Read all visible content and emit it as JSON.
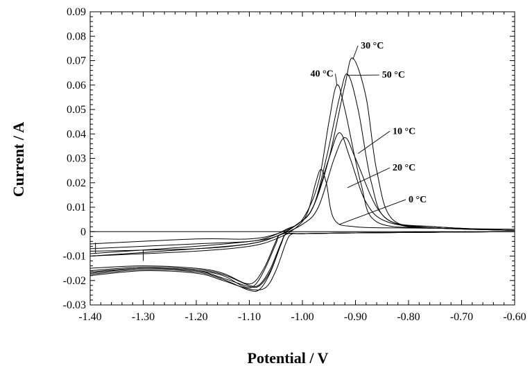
{
  "chart_data": {
    "type": "line",
    "xlabel": "Potential / V",
    "ylabel": "Current / A",
    "xlim": [
      -1.4,
      -0.6
    ],
    "ylim": [
      -0.03,
      0.09
    ],
    "x_ticks": [
      "-1.40",
      "-1.30",
      "-1.20",
      "-1.10",
      "-1.00",
      "-0.90",
      "-0.80",
      "-0.70",
      "-0.60"
    ],
    "y_ticks": [
      "-0.03",
      "-0.02",
      "-0.01",
      "0",
      "0.01",
      "0.02",
      "0.03",
      "0.04",
      "0.05",
      "0.06",
      "0.07",
      "0.08",
      "0.09"
    ],
    "grid": false,
    "series": [
      {
        "name": "0 °C",
        "forward": [
          [
            -1.4,
            -0.017
          ],
          [
            -1.3,
            -0.015
          ],
          [
            -1.2,
            -0.016
          ],
          [
            -1.15,
            -0.019
          ],
          [
            -1.1,
            -0.0225
          ],
          [
            -1.08,
            -0.022
          ],
          [
            -1.06,
            -0.016
          ],
          [
            -1.04,
            -0.005
          ],
          [
            -1.03,
            -0.001
          ],
          [
            -1.0,
            -0.0008
          ],
          [
            -0.9,
            -0.0005
          ],
          [
            -0.8,
            -0.0003
          ],
          [
            -0.6,
            0.0
          ]
        ],
        "reverse": [
          [
            -0.6,
            0.001
          ],
          [
            -0.8,
            0.0015
          ],
          [
            -0.9,
            0.002
          ],
          [
            -0.94,
            0.005
          ],
          [
            -0.955,
            0.02
          ],
          [
            -0.965,
            0.0255
          ],
          [
            -0.975,
            0.02
          ],
          [
            -0.99,
            0.008
          ],
          [
            -1.01,
            0.002
          ],
          [
            -1.05,
            -0.003
          ],
          [
            -1.1,
            -0.006
          ],
          [
            -1.2,
            -0.008
          ],
          [
            -1.4,
            -0.01
          ]
        ]
      },
      {
        "name": "10 °C",
        "forward": [
          [
            -1.4,
            -0.018
          ],
          [
            -1.3,
            -0.016
          ],
          [
            -1.2,
            -0.017
          ],
          [
            -1.15,
            -0.02
          ],
          [
            -1.1,
            -0.0235
          ],
          [
            -1.07,
            -0.023
          ],
          [
            -1.05,
            -0.016
          ],
          [
            -1.03,
            -0.004
          ],
          [
            -1.02,
            -0.001
          ],
          [
            -1.0,
            -0.0008
          ],
          [
            -0.9,
            -0.0005
          ],
          [
            -0.6,
            0.0
          ]
        ],
        "reverse": [
          [
            -0.6,
            0.0005
          ],
          [
            -0.75,
            0.0015
          ],
          [
            -0.84,
            0.004
          ],
          [
            -0.88,
            0.012
          ],
          [
            -0.91,
            0.03
          ],
          [
            -0.93,
            0.0405
          ],
          [
            -0.95,
            0.03
          ],
          [
            -0.98,
            0.01
          ],
          [
            -1.01,
            0.003
          ],
          [
            -1.05,
            -0.002
          ],
          [
            -1.1,
            -0.004
          ],
          [
            -1.2,
            -0.006
          ],
          [
            -1.4,
            -0.009
          ]
        ]
      },
      {
        "name": "20 °C",
        "forward": [
          [
            -1.4,
            -0.0175
          ],
          [
            -1.3,
            -0.0155
          ],
          [
            -1.2,
            -0.0165
          ],
          [
            -1.15,
            -0.0195
          ],
          [
            -1.1,
            -0.024
          ],
          [
            -1.08,
            -0.0235
          ],
          [
            -1.06,
            -0.0165
          ],
          [
            -1.04,
            -0.005
          ],
          [
            -1.03,
            -0.001
          ],
          [
            -1.0,
            -0.0008
          ],
          [
            -0.9,
            -0.0005
          ],
          [
            -0.6,
            0.0
          ]
        ],
        "reverse": [
          [
            -0.6,
            0.0005
          ],
          [
            -0.75,
            0.0015
          ],
          [
            -0.82,
            0.003
          ],
          [
            -0.86,
            0.01
          ],
          [
            -0.9,
            0.03
          ],
          [
            -0.92,
            0.0385
          ],
          [
            -0.94,
            0.03
          ],
          [
            -0.97,
            0.01
          ],
          [
            -1.0,
            0.003
          ],
          [
            -1.05,
            -0.002
          ],
          [
            -1.1,
            -0.005
          ],
          [
            -1.2,
            -0.007
          ],
          [
            -1.4,
            -0.008
          ]
        ]
      },
      {
        "name": "30 °C",
        "forward": [
          [
            -1.4,
            -0.0165
          ],
          [
            -1.3,
            -0.015
          ],
          [
            -1.2,
            -0.016
          ],
          [
            -1.15,
            -0.018
          ],
          [
            -1.11,
            -0.0225
          ],
          [
            -1.09,
            -0.022
          ],
          [
            -1.07,
            -0.015
          ],
          [
            -1.05,
            -0.005
          ],
          [
            -1.04,
            -0.001
          ],
          [
            -1.0,
            -0.0008
          ],
          [
            -0.9,
            -0.0005
          ],
          [
            -0.6,
            0.0
          ]
        ],
        "reverse": [
          [
            -0.6,
            0.0005
          ],
          [
            -0.75,
            0.002
          ],
          [
            -0.83,
            0.005
          ],
          [
            -0.86,
            0.025
          ],
          [
            -0.88,
            0.055
          ],
          [
            -0.905,
            0.071
          ],
          [
            -0.92,
            0.06
          ],
          [
            -0.95,
            0.03
          ],
          [
            -0.98,
            0.01
          ],
          [
            -1.01,
            0.003
          ],
          [
            -1.05,
            -0.002
          ],
          [
            -1.1,
            -0.005
          ],
          [
            -1.2,
            -0.007
          ],
          [
            -1.4,
            -0.01
          ]
        ]
      },
      {
        "name": "40 °C",
        "forward": [
          [
            -1.4,
            -0.016
          ],
          [
            -1.3,
            -0.0145
          ],
          [
            -1.2,
            -0.0155
          ],
          [
            -1.15,
            -0.0175
          ],
          [
            -1.1,
            -0.022
          ],
          [
            -1.08,
            -0.0215
          ],
          [
            -1.06,
            -0.015
          ],
          [
            -1.04,
            -0.0045
          ],
          [
            -1.03,
            -0.001
          ],
          [
            -1.0,
            -0.0008
          ],
          [
            -0.9,
            -0.0005
          ],
          [
            -0.6,
            0.0
          ]
        ],
        "reverse": [
          [
            -0.6,
            0.0005
          ],
          [
            -0.75,
            0.0015
          ],
          [
            -0.86,
            0.004
          ],
          [
            -0.89,
            0.02
          ],
          [
            -0.92,
            0.05
          ],
          [
            -0.935,
            0.06
          ],
          [
            -0.95,
            0.045
          ],
          [
            -0.97,
            0.02
          ],
          [
            -1.0,
            0.005
          ],
          [
            -1.03,
            0.001
          ],
          [
            -1.06,
            -0.002
          ],
          [
            -1.1,
            -0.004
          ],
          [
            -1.2,
            -0.005
          ],
          [
            -1.4,
            -0.007
          ]
        ]
      },
      {
        "name": "50 °C",
        "forward": [
          [
            -1.4,
            -0.015
          ],
          [
            -1.3,
            -0.014
          ],
          [
            -1.2,
            -0.015
          ],
          [
            -1.15,
            -0.017
          ],
          [
            -1.11,
            -0.021
          ],
          [
            -1.09,
            -0.0205
          ],
          [
            -1.07,
            -0.014
          ],
          [
            -1.05,
            -0.004
          ],
          [
            -1.04,
            -0.001
          ],
          [
            -1.0,
            -0.0008
          ],
          [
            -0.9,
            -0.0005
          ],
          [
            -0.6,
            0.0
          ]
        ],
        "reverse": [
          [
            -0.6,
            0.0005
          ],
          [
            -0.75,
            0.002
          ],
          [
            -0.84,
            0.005
          ],
          [
            -0.87,
            0.02
          ],
          [
            -0.895,
            0.05
          ],
          [
            -0.915,
            0.0645
          ],
          [
            -0.93,
            0.055
          ],
          [
            -0.955,
            0.03
          ],
          [
            -0.98,
            0.01
          ],
          [
            -1.01,
            0.003
          ],
          [
            -1.05,
            -0.001
          ],
          [
            -1.1,
            -0.003
          ],
          [
            -1.2,
            -0.003
          ],
          [
            -1.4,
            -0.005
          ]
        ]
      }
    ],
    "annotations": [
      {
        "text": "30 °C",
        "at": [
          -0.89,
          0.075
        ],
        "points_to": [
          -0.905,
          0.0705
        ]
      },
      {
        "text": "40 °C",
        "at": [
          -0.985,
          0.0635
        ],
        "points_to": [
          -0.935,
          0.06
        ]
      },
      {
        "text": "50 °C",
        "at": [
          -0.85,
          0.063
        ],
        "points_to": [
          -0.915,
          0.064
        ]
      },
      {
        "text": "10 °C",
        "at": [
          -0.83,
          0.04
        ],
        "points_to": [
          -0.895,
          0.032
        ]
      },
      {
        "text": "20 °C",
        "at": [
          -0.83,
          0.025
        ],
        "points_to": [
          -0.915,
          0.018
        ]
      },
      {
        "text": "0 °C",
        "at": [
          -0.8,
          0.012
        ],
        "points_to": [
          -0.93,
          0.003
        ]
      }
    ]
  }
}
